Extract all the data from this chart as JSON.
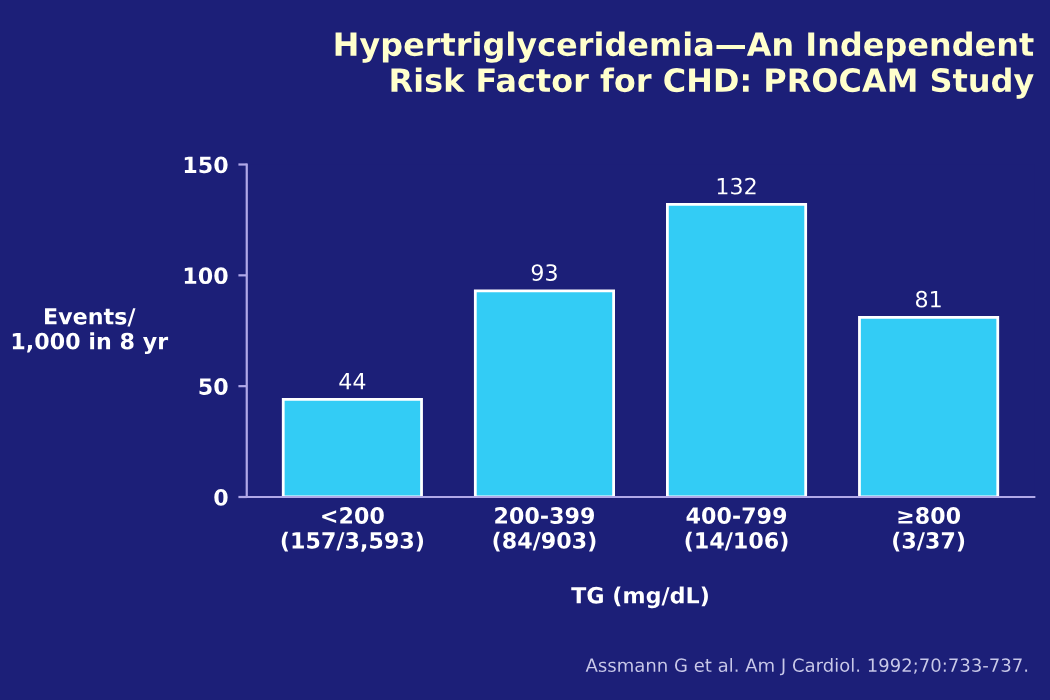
{
  "chart_data": {
    "type": "bar",
    "title": "Hypertriglyceridemia—An Independent\nRisk Factor for CHD: PROCAM Study",
    "categories": [
      "<200\n(157/3,593)",
      "200-399\n(84/903)",
      "400-799\n(14/106)",
      "≥800\n(3/37)"
    ],
    "values": [
      44,
      93,
      132,
      81
    ],
    "color": "#33ccf5",
    "data_labels": true,
    "xlabel": "TG (mg/dL)",
    "ylabel": "Events/\n1,000 in 8 yr",
    "ylim": [
      0,
      150
    ],
    "yticks": [
      0,
      50,
      100,
      150
    ],
    "grid": false,
    "legend": false,
    "annotations": [
      "Assmann G et al. Am J Cardiol. 1992;70:733-737."
    ]
  }
}
